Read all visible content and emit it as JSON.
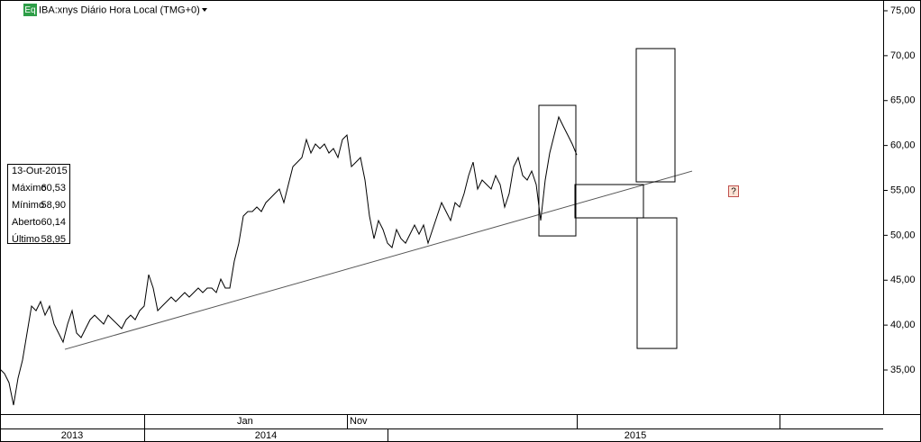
{
  "chart_data": {
    "type": "line",
    "title": "IBA:xnys Diário Hora Local (TMG+0)",
    "badge": "Eq",
    "help_icon": "?",
    "series": [
      {
        "name": "IBA",
        "color": "#000000",
        "values": [
          35.1,
          34.6,
          33.59,
          31.09,
          34.09,
          36.1,
          39.11,
          42.12,
          41.61,
          42.62,
          41.11,
          42.12,
          40.11,
          39.11,
          38.1,
          40.11,
          41.61,
          39.11,
          38.61,
          39.61,
          40.61,
          41.11,
          40.61,
          40.11,
          41.11,
          40.61,
          40.11,
          39.61,
          40.61,
          41.11,
          40.61,
          41.61,
          42.12,
          45.62,
          44.12,
          41.61,
          42.12,
          42.62,
          43.12,
          42.62,
          43.12,
          43.62,
          43.12,
          43.62,
          44.12,
          43.62,
          44.12,
          44.12,
          43.62,
          45.12,
          44.12,
          44.12,
          47.13,
          49.13,
          52.14,
          52.64,
          52.64,
          53.14,
          52.64,
          53.64,
          54.14,
          54.65,
          55.15,
          53.64,
          55.65,
          57.65,
          58.15,
          58.66,
          60.66,
          59.16,
          60.16,
          59.66,
          60.16,
          59.16,
          59.66,
          58.66,
          60.66,
          61.16,
          57.65,
          58.15,
          58.66,
          56.15,
          52.14,
          49.63,
          51.64,
          50.64,
          49.13,
          48.63,
          50.64,
          49.63,
          49.13,
          50.13,
          51.14,
          50.13,
          51.14,
          49.13,
          50.64,
          52.14,
          53.64,
          52.64,
          51.64,
          53.64,
          53.14,
          54.65,
          56.65,
          58.15,
          55.15,
          56.15,
          55.65,
          55.15,
          56.65,
          55.65,
          53.14,
          54.65,
          57.65,
          58.66,
          56.65,
          56.15,
          57.15,
          55.65,
          51.64,
          56.15,
          59.16,
          61.16,
          63.17,
          62.16,
          61.16,
          60.16,
          58.95
        ]
      }
    ],
    "xlim": [
      0,
      196
    ],
    "xticks": [
      {
        "value": 52.6,
        "label": "Jan"
      },
      {
        "value": 77.6,
        "label": "Nov"
      }
    ],
    "xticks_year": [
      {
        "value": 16,
        "label": "2013"
      },
      {
        "value": 59,
        "label": "2014"
      },
      {
        "value": 141,
        "label": "2015"
      }
    ],
    "ylim": [
      30.09,
      76.2
    ],
    "yticks": [
      {
        "value": 35,
        "label": "35,00"
      },
      {
        "value": 40,
        "label": "40,00"
      },
      {
        "value": 45,
        "label": "45,00"
      },
      {
        "value": 50,
        "label": "50,00"
      },
      {
        "value": 55,
        "label": "55,00"
      },
      {
        "value": 60,
        "label": "60,00"
      },
      {
        "value": 65,
        "label": "65,00"
      },
      {
        "value": 70,
        "label": "70,00"
      },
      {
        "value": 75,
        "label": "75,00"
      }
    ],
    "trendline": {
      "x": [
        14.4,
        153.6
      ],
      "y": [
        37.3,
        57.15
      ]
    },
    "boxes": [
      {
        "x": [
          119.6,
          127.8
        ],
        "y": [
          49.93,
          64.47
        ]
      },
      {
        "x": [
          127.6,
          142.8
        ],
        "y": [
          51.94,
          55.65
        ]
      },
      {
        "x": [
          141.2,
          149.8
        ],
        "y": [
          55.95,
          70.79
        ]
      },
      {
        "x": [
          141.4,
          150.2
        ],
        "y": [
          37.4,
          51.94
        ]
      }
    ],
    "info": {
      "date": "13-Out-2015",
      "rows": [
        {
          "label": "Máximo",
          "value": {
            "value": 60.53,
            "label": "60,53"
          }
        },
        {
          "label": "Mínimo",
          "value": {
            "value": 58.9,
            "label": "58,90"
          }
        },
        {
          "label": "Aberto",
          "value": {
            "value": 60.14,
            "label": "60,14"
          }
        },
        {
          "label": "Último",
          "value": {
            "value": 58.95,
            "label": "58,95"
          }
        }
      ]
    }
  }
}
